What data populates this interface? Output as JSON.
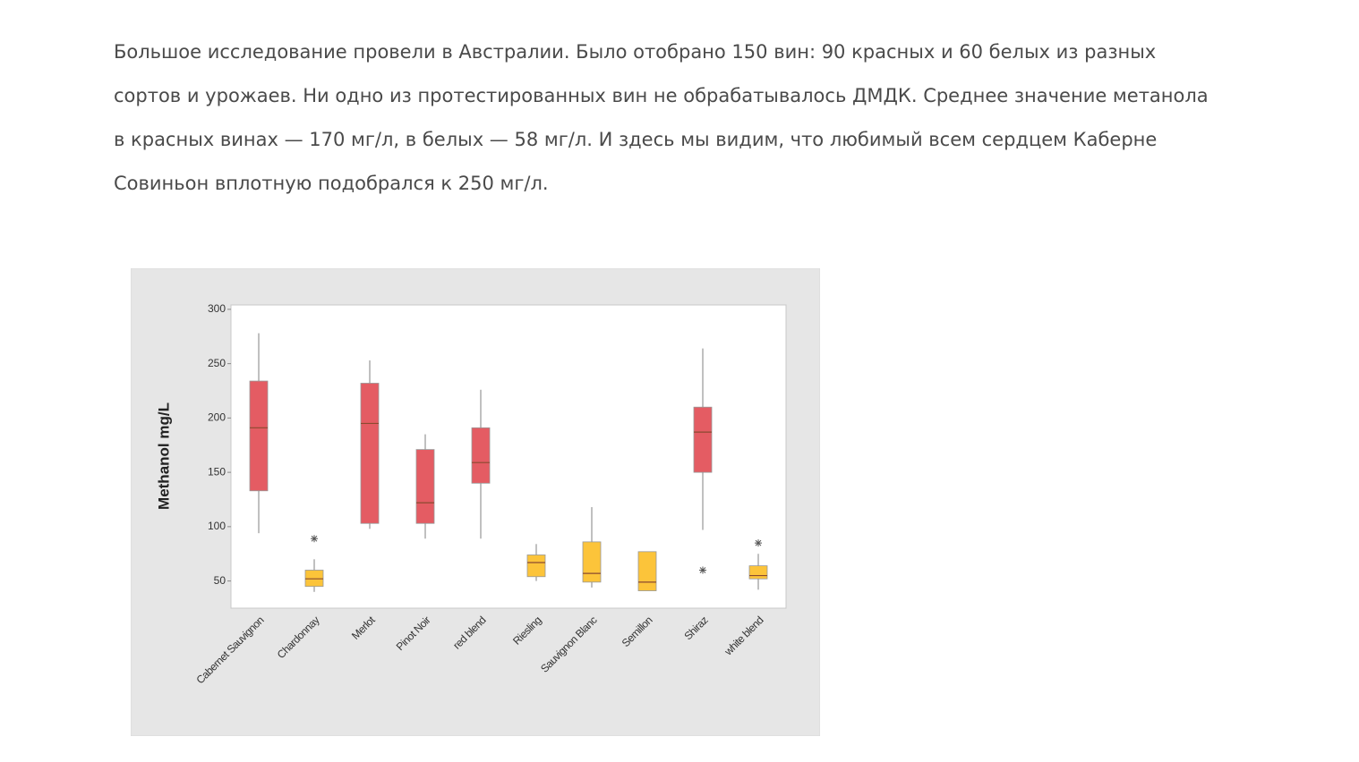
{
  "paragraph": [
    "Большое исследование провели в Австралии. Было отобрано 150 вин: 90 красных и 60 белых из разных",
    "сортов и урожаев. Ни одно из протестированных вин не обрабатывалось ДМДК. Среднее значение метанола",
    "в красных винах — 170 мг/л, в белых — 58 мг/л. И здесь мы видим, что любимый всем сердцем Каберне",
    "Совиньон вплотную подобрался к 250 мг/л."
  ],
  "chart_data": {
    "type": "box",
    "y_label": "Methanol mg/L",
    "categories": [
      "Cabernet Sauvignon",
      "Chardonnay",
      "Merlot",
      "Pinot Noir",
      "red blend",
      "Riesling",
      "Sauvignon Blanc",
      "Semillon",
      "Shiraz",
      "white blend"
    ],
    "boxes": [
      {
        "min": 94,
        "q1": 133,
        "median": 191,
        "q3": 234,
        "max": 278,
        "color": "#e45c63"
      },
      {
        "min": 40,
        "q1": 45,
        "median": 52,
        "q3": 60,
        "max": 70,
        "outliers": [
          89
        ],
        "color": "#fcc43a"
      },
      {
        "min": 98,
        "q1": 103,
        "median": 195,
        "q3": 232,
        "max": 253,
        "color": "#e45c63"
      },
      {
        "min": 89,
        "q1": 103,
        "median": 122,
        "q3": 171,
        "max": 185,
        "color": "#e45c63"
      },
      {
        "min": 89,
        "q1": 140,
        "median": 159,
        "q3": 191,
        "max": 226,
        "color": "#e45c63"
      },
      {
        "min": 50,
        "q1": 54,
        "median": 67,
        "q3": 74,
        "max": 84,
        "color": "#fcc43a"
      },
      {
        "min": 44,
        "q1": 49,
        "median": 57,
        "q3": 86,
        "max": 118,
        "color": "#fcc43a"
      },
      {
        "min": 41,
        "q1": 41,
        "median": 49,
        "q3": 77,
        "max": 77,
        "color": "#fcc43a"
      },
      {
        "min": 97,
        "q1": 150,
        "median": 187,
        "q3": 210,
        "max": 264,
        "outliers": [
          60
        ],
        "color": "#e45c63"
      },
      {
        "min": 42,
        "q1": 52,
        "median": 55,
        "q3": 64,
        "max": 75,
        "outliers": [
          85
        ],
        "color": "#fcc43a"
      }
    ],
    "ylim": [
      25,
      304
    ],
    "yticks": [
      50,
      100,
      150,
      200,
      250,
      300
    ]
  }
}
